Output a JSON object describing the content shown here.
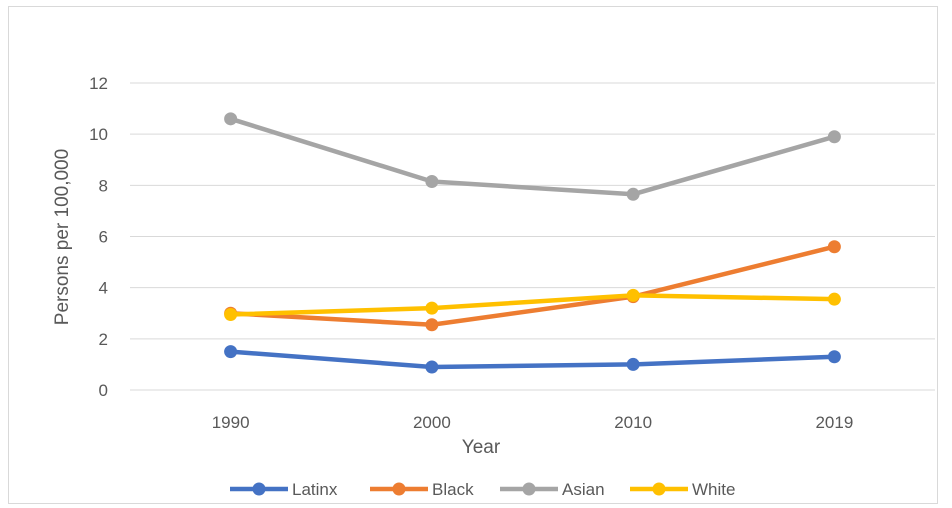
{
  "chart_data": {
    "type": "line",
    "title": "",
    "xlabel": "Year",
    "ylabel": "Persons per 100,000",
    "categories": [
      "1990",
      "2000",
      "2010",
      "2019"
    ],
    "ylim": [
      0,
      12
    ],
    "yticks": [
      0,
      2,
      4,
      6,
      8,
      10,
      12
    ],
    "grid": true,
    "legend_position": "bottom",
    "series": [
      {
        "name": "Latinx",
        "color": "#4472c4",
        "values": [
          1.5,
          0.9,
          1.0,
          1.3
        ]
      },
      {
        "name": "Black",
        "color": "#ed7d31",
        "values": [
          3.0,
          2.55,
          3.65,
          5.6
        ]
      },
      {
        "name": "Asian",
        "color": "#a5a5a5",
        "values": [
          10.6,
          8.15,
          7.65,
          9.9
        ]
      },
      {
        "name": "White",
        "color": "#ffc000",
        "values": [
          2.95,
          3.2,
          3.7,
          3.55
        ]
      }
    ]
  }
}
